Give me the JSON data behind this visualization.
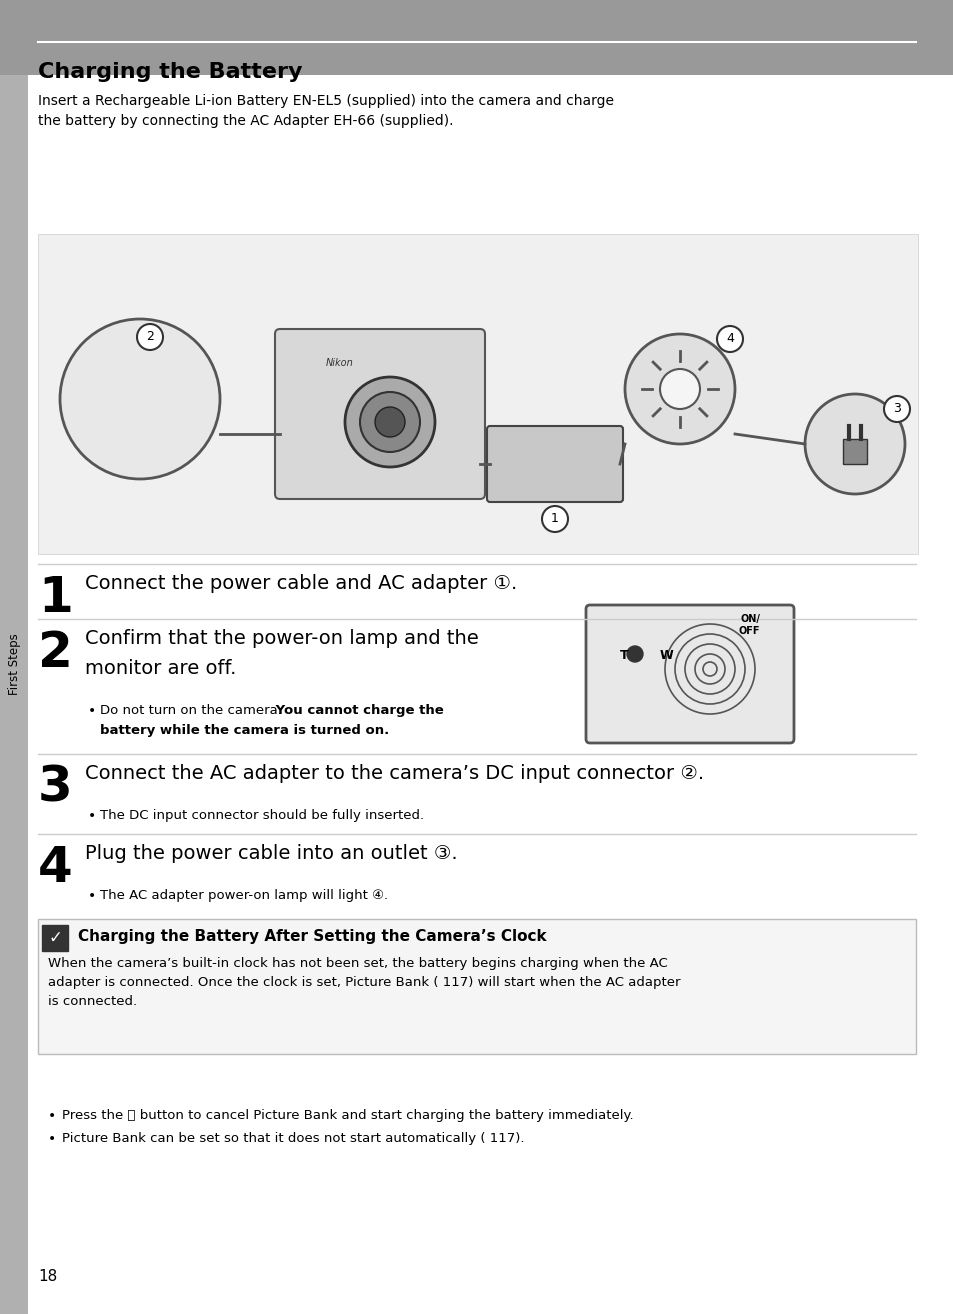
{
  "page_bg": "#ffffff",
  "header_bg": "#999999",
  "header_line_color": "#ffffff",
  "header_title": "Charging the Battery",
  "header_title_color": "#000000",
  "body_text_color": "#000000",
  "intro_text": "Insert a Rechargeable Li-ion Battery EN-EL5 (supplied) into the camera and charge\nthe battery by connecting the AC Adapter EH-66 (supplied).",
  "step1_num": "1",
  "step1_text": "Connect the power cable and AC adapter ①.",
  "step2_num": "2",
  "step2_line1": "Confirm that the power-on lamp and the",
  "step2_line2": "monitor are off.",
  "step2_bullet": "Do not turn on the camera. You cannot charge the\nbattery while the camera is turned on.",
  "step3_num": "3",
  "step3_text": "Connect the AC adapter to the camera’s DC input connector ②.",
  "step3_bullet": "The DC input connector should be fully inserted.",
  "step4_num": "4",
  "step4_text": "Plug the power cable into an outlet ③.",
  "step4_bullet": "The AC adapter power-on lamp will light ④.",
  "note_title": "Charging the Battery After Setting the Camera’s Clock",
  "note_para": "When the camera’s built-in clock has not been set, the battery begins charging when the AC\nadapter is connected. Once the clock is set, Picture Bank ( 117) will start when the AC adapter\nis connected.",
  "note_bullet1": "Press the Ⓚ button to cancel Picture Bank and start charging the battery immediately.",
  "note_bullet2": "Picture Bank can be set so that it does not start automatically ( 117).",
  "page_number": "18",
  "sidebar_text": "First Steps"
}
